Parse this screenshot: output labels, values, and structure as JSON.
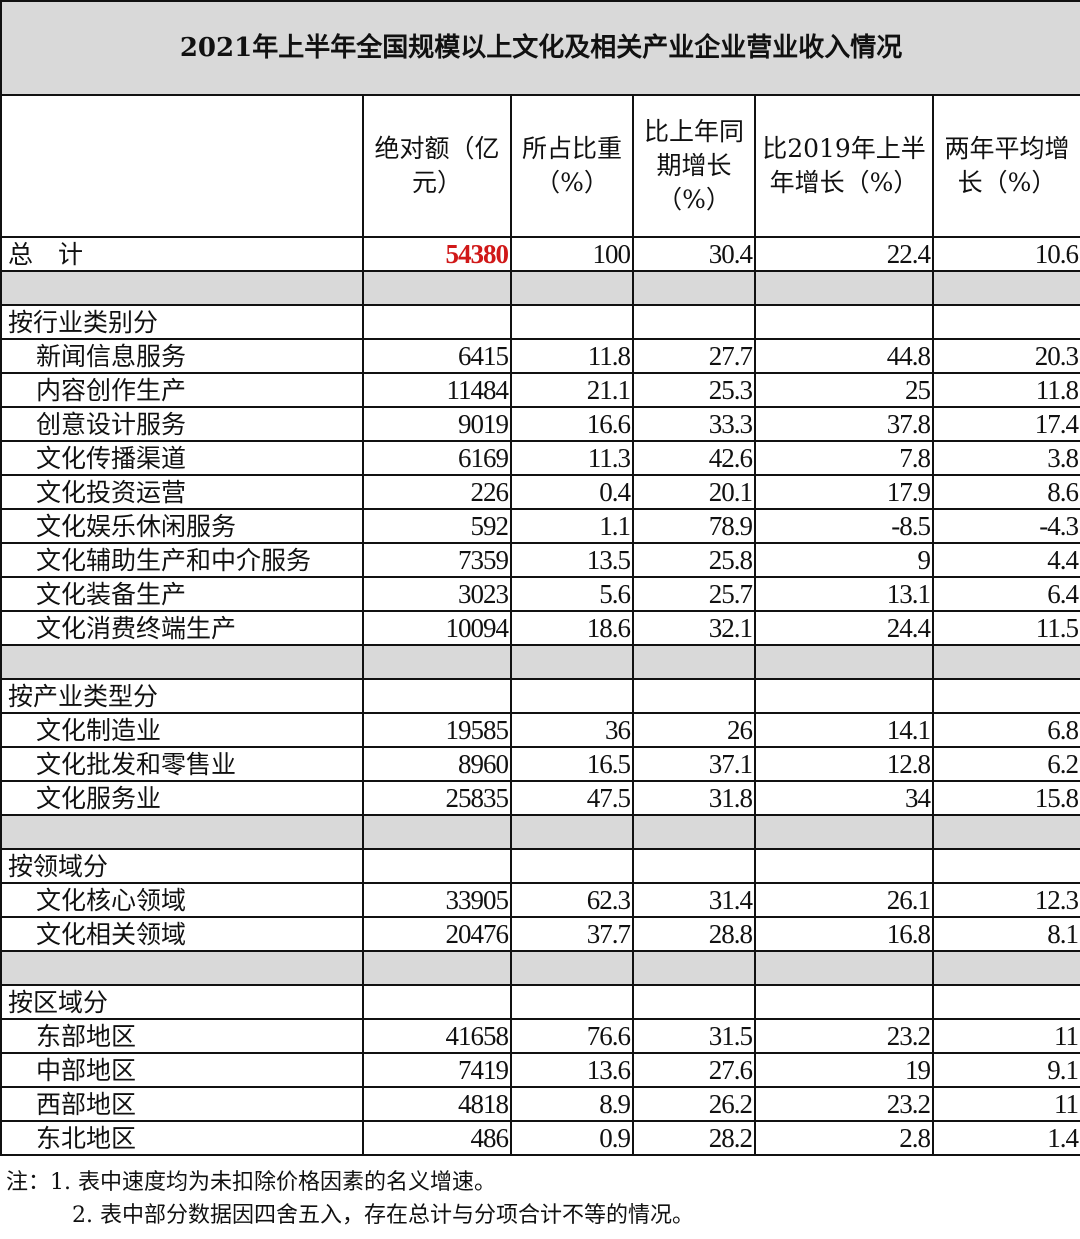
{
  "title": "2021年上半年全国规模以上文化及相关产业企业营业收入情况",
  "headers": [
    "",
    "绝对额（亿元）",
    "所占比重（%）",
    "比上年同期增长（%）",
    "比2019年上半年增长（%）",
    "两年平均增长（%）"
  ],
  "total": {
    "label": "总　计",
    "values": [
      "54380",
      "100",
      "30.4",
      "22.4",
      "10.6"
    ],
    "highlight_color": "#d01818"
  },
  "groups": [
    {
      "label": "按行业类别分",
      "rows": [
        {
          "label": "新闻信息服务",
          "values": [
            "6415",
            "11.8",
            "27.7",
            "44.8",
            "20.3"
          ]
        },
        {
          "label": "内容创作生产",
          "values": [
            "11484",
            "21.1",
            "25.3",
            "25",
            "11.8"
          ]
        },
        {
          "label": "创意设计服务",
          "values": [
            "9019",
            "16.6",
            "33.3",
            "37.8",
            "17.4"
          ]
        },
        {
          "label": "文化传播渠道",
          "values": [
            "6169",
            "11.3",
            "42.6",
            "7.8",
            "3.8"
          ]
        },
        {
          "label": "文化投资运营",
          "values": [
            "226",
            "0.4",
            "20.1",
            "17.9",
            "8.6"
          ]
        },
        {
          "label": "文化娱乐休闲服务",
          "values": [
            "592",
            "1.1",
            "78.9",
            "-8.5",
            "-4.3"
          ]
        },
        {
          "label": "文化辅助生产和中介服务",
          "values": [
            "7359",
            "13.5",
            "25.8",
            "9",
            "4.4"
          ]
        },
        {
          "label": "文化装备生产",
          "values": [
            "3023",
            "5.6",
            "25.7",
            "13.1",
            "6.4"
          ]
        },
        {
          "label": "文化消费终端生产",
          "values": [
            "10094",
            "18.6",
            "32.1",
            "24.4",
            "11.5"
          ]
        }
      ]
    },
    {
      "label": "按产业类型分",
      "rows": [
        {
          "label": "文化制造业",
          "values": [
            "19585",
            "36",
            "26",
            "14.1",
            "6.8"
          ]
        },
        {
          "label": "文化批发和零售业",
          "values": [
            "8960",
            "16.5",
            "37.1",
            "12.8",
            "6.2"
          ]
        },
        {
          "label": "文化服务业",
          "values": [
            "25835",
            "47.5",
            "31.8",
            "34",
            "15.8"
          ]
        }
      ]
    },
    {
      "label": "按领域分",
      "rows": [
        {
          "label": "文化核心领域",
          "values": [
            "33905",
            "62.3",
            "31.4",
            "26.1",
            "12.3"
          ]
        },
        {
          "label": "文化相关领域",
          "values": [
            "20476",
            "37.7",
            "28.8",
            "16.8",
            "8.1"
          ]
        }
      ]
    },
    {
      "label": "按区域分",
      "rows": [
        {
          "label": "东部地区",
          "values": [
            "41658",
            "76.6",
            "31.5",
            "23.2",
            "11"
          ]
        },
        {
          "label": "中部地区",
          "values": [
            "7419",
            "13.6",
            "27.6",
            "19",
            "9.1"
          ]
        },
        {
          "label": "西部地区",
          "values": [
            "4818",
            "8.9",
            "26.2",
            "23.2",
            "11"
          ]
        },
        {
          "label": "东北地区",
          "values": [
            "486",
            "0.9",
            "28.2",
            "2.8",
            "1.4"
          ]
        }
      ]
    }
  ],
  "notes": [
    "注：1. 表中速度均为未扣除价格因素的名义增速。",
    "2. 表中部分数据因四舍五入，存在总计与分项合计不等的情况。"
  ]
}
